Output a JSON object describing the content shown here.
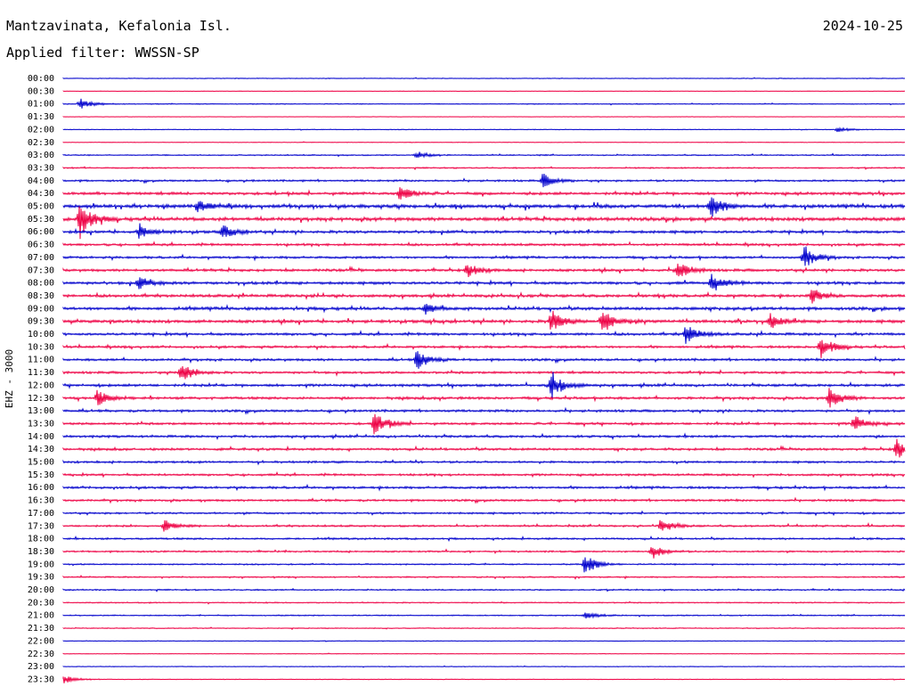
{
  "header": {
    "station": "Mantzavinata, Kefalonia Isl.",
    "date": "2024-10-25",
    "filter": "Applied filter: WWSSN-SP"
  },
  "chart_data": {
    "type": "line",
    "subtype": "helicorder",
    "ylabel": "EHZ - 3000",
    "colors": {
      "even_rows": "#0000cc",
      "odd_rows": "#ee0044"
    },
    "rows": [
      "00:00",
      "00:30",
      "01:00",
      "01:30",
      "02:00",
      "02:30",
      "03:00",
      "03:30",
      "04:00",
      "04:30",
      "05:00",
      "05:30",
      "06:00",
      "06:30",
      "07:00",
      "07:30",
      "08:00",
      "08:30",
      "09:00",
      "09:30",
      "10:00",
      "10:30",
      "11:00",
      "11:30",
      "12:00",
      "12:30",
      "13:00",
      "13:30",
      "14:00",
      "14:30",
      "15:00",
      "15:30",
      "16:00",
      "16:30",
      "17:00",
      "17:30",
      "18:00",
      "18:30",
      "19:00",
      "19:30",
      "20:00",
      "20:30",
      "21:00",
      "21:30",
      "22:00",
      "22:30",
      "23:00",
      "23:30"
    ],
    "noise_level": [
      0.3,
      0.2,
      0.4,
      0.2,
      0.3,
      0.3,
      0.5,
      0.6,
      0.8,
      1.2,
      1.5,
      1.5,
      1.2,
      1.0,
      1.0,
      1.1,
      1.2,
      1.2,
      1.3,
      1.3,
      1.1,
      1.0,
      1.0,
      1.0,
      1.1,
      1.1,
      1.0,
      1.0,
      1.0,
      1.0,
      0.9,
      0.9,
      1.0,
      0.9,
      0.8,
      0.8,
      0.8,
      0.7,
      0.6,
      0.6,
      0.6,
      0.5,
      0.5,
      0.4,
      0.3,
      0.3,
      0.3,
      0.3
    ],
    "events": [
      {
        "row": "01:00",
        "t": 0.02,
        "amp": 6
      },
      {
        "row": "02:00",
        "t": 0.92,
        "amp": 3
      },
      {
        "row": "03:00",
        "t": 0.42,
        "amp": 4
      },
      {
        "row": "04:00",
        "t": 0.57,
        "amp": 8
      },
      {
        "row": "04:30",
        "t": 0.4,
        "amp": 8
      },
      {
        "row": "05:00",
        "t": 0.77,
        "amp": 14
      },
      {
        "row": "05:00",
        "t": 0.16,
        "amp": 7
      },
      {
        "row": "05:30",
        "t": 0.02,
        "amp": 22
      },
      {
        "row": "06:00",
        "t": 0.09,
        "amp": 7
      },
      {
        "row": "06:00",
        "t": 0.19,
        "amp": 7
      },
      {
        "row": "07:00",
        "t": 0.88,
        "amp": 14
      },
      {
        "row": "07:30",
        "t": 0.48,
        "amp": 8
      },
      {
        "row": "07:30",
        "t": 0.73,
        "amp": 10
      },
      {
        "row": "08:00",
        "t": 0.77,
        "amp": 12
      },
      {
        "row": "08:00",
        "t": 0.09,
        "amp": 7
      },
      {
        "row": "08:30",
        "t": 0.89,
        "amp": 8
      },
      {
        "row": "09:00",
        "t": 0.43,
        "amp": 6
      },
      {
        "row": "09:30",
        "t": 0.58,
        "amp": 14
      },
      {
        "row": "09:30",
        "t": 0.64,
        "amp": 14
      },
      {
        "row": "09:30",
        "t": 0.84,
        "amp": 8
      },
      {
        "row": "10:00",
        "t": 0.74,
        "amp": 12
      },
      {
        "row": "10:30",
        "t": 0.9,
        "amp": 14
      },
      {
        "row": "11:00",
        "t": 0.42,
        "amp": 12
      },
      {
        "row": "11:30",
        "t": 0.14,
        "amp": 12
      },
      {
        "row": "12:00",
        "t": 0.58,
        "amp": 16
      },
      {
        "row": "12:30",
        "t": 0.04,
        "amp": 9
      },
      {
        "row": "12:30",
        "t": 0.91,
        "amp": 12
      },
      {
        "row": "13:30",
        "t": 0.37,
        "amp": 14
      },
      {
        "row": "13:30",
        "t": 0.94,
        "amp": 9
      },
      {
        "row": "14:30",
        "t": 0.99,
        "amp": 12
      },
      {
        "row": "17:30",
        "t": 0.12,
        "amp": 7
      },
      {
        "row": "17:30",
        "t": 0.71,
        "amp": 8
      },
      {
        "row": "18:30",
        "t": 0.7,
        "amp": 8
      },
      {
        "row": "19:00",
        "t": 0.62,
        "amp": 12
      },
      {
        "row": "21:00",
        "t": 0.62,
        "amp": 4
      },
      {
        "row": "23:30",
        "t": 0.0,
        "amp": 5
      }
    ]
  }
}
